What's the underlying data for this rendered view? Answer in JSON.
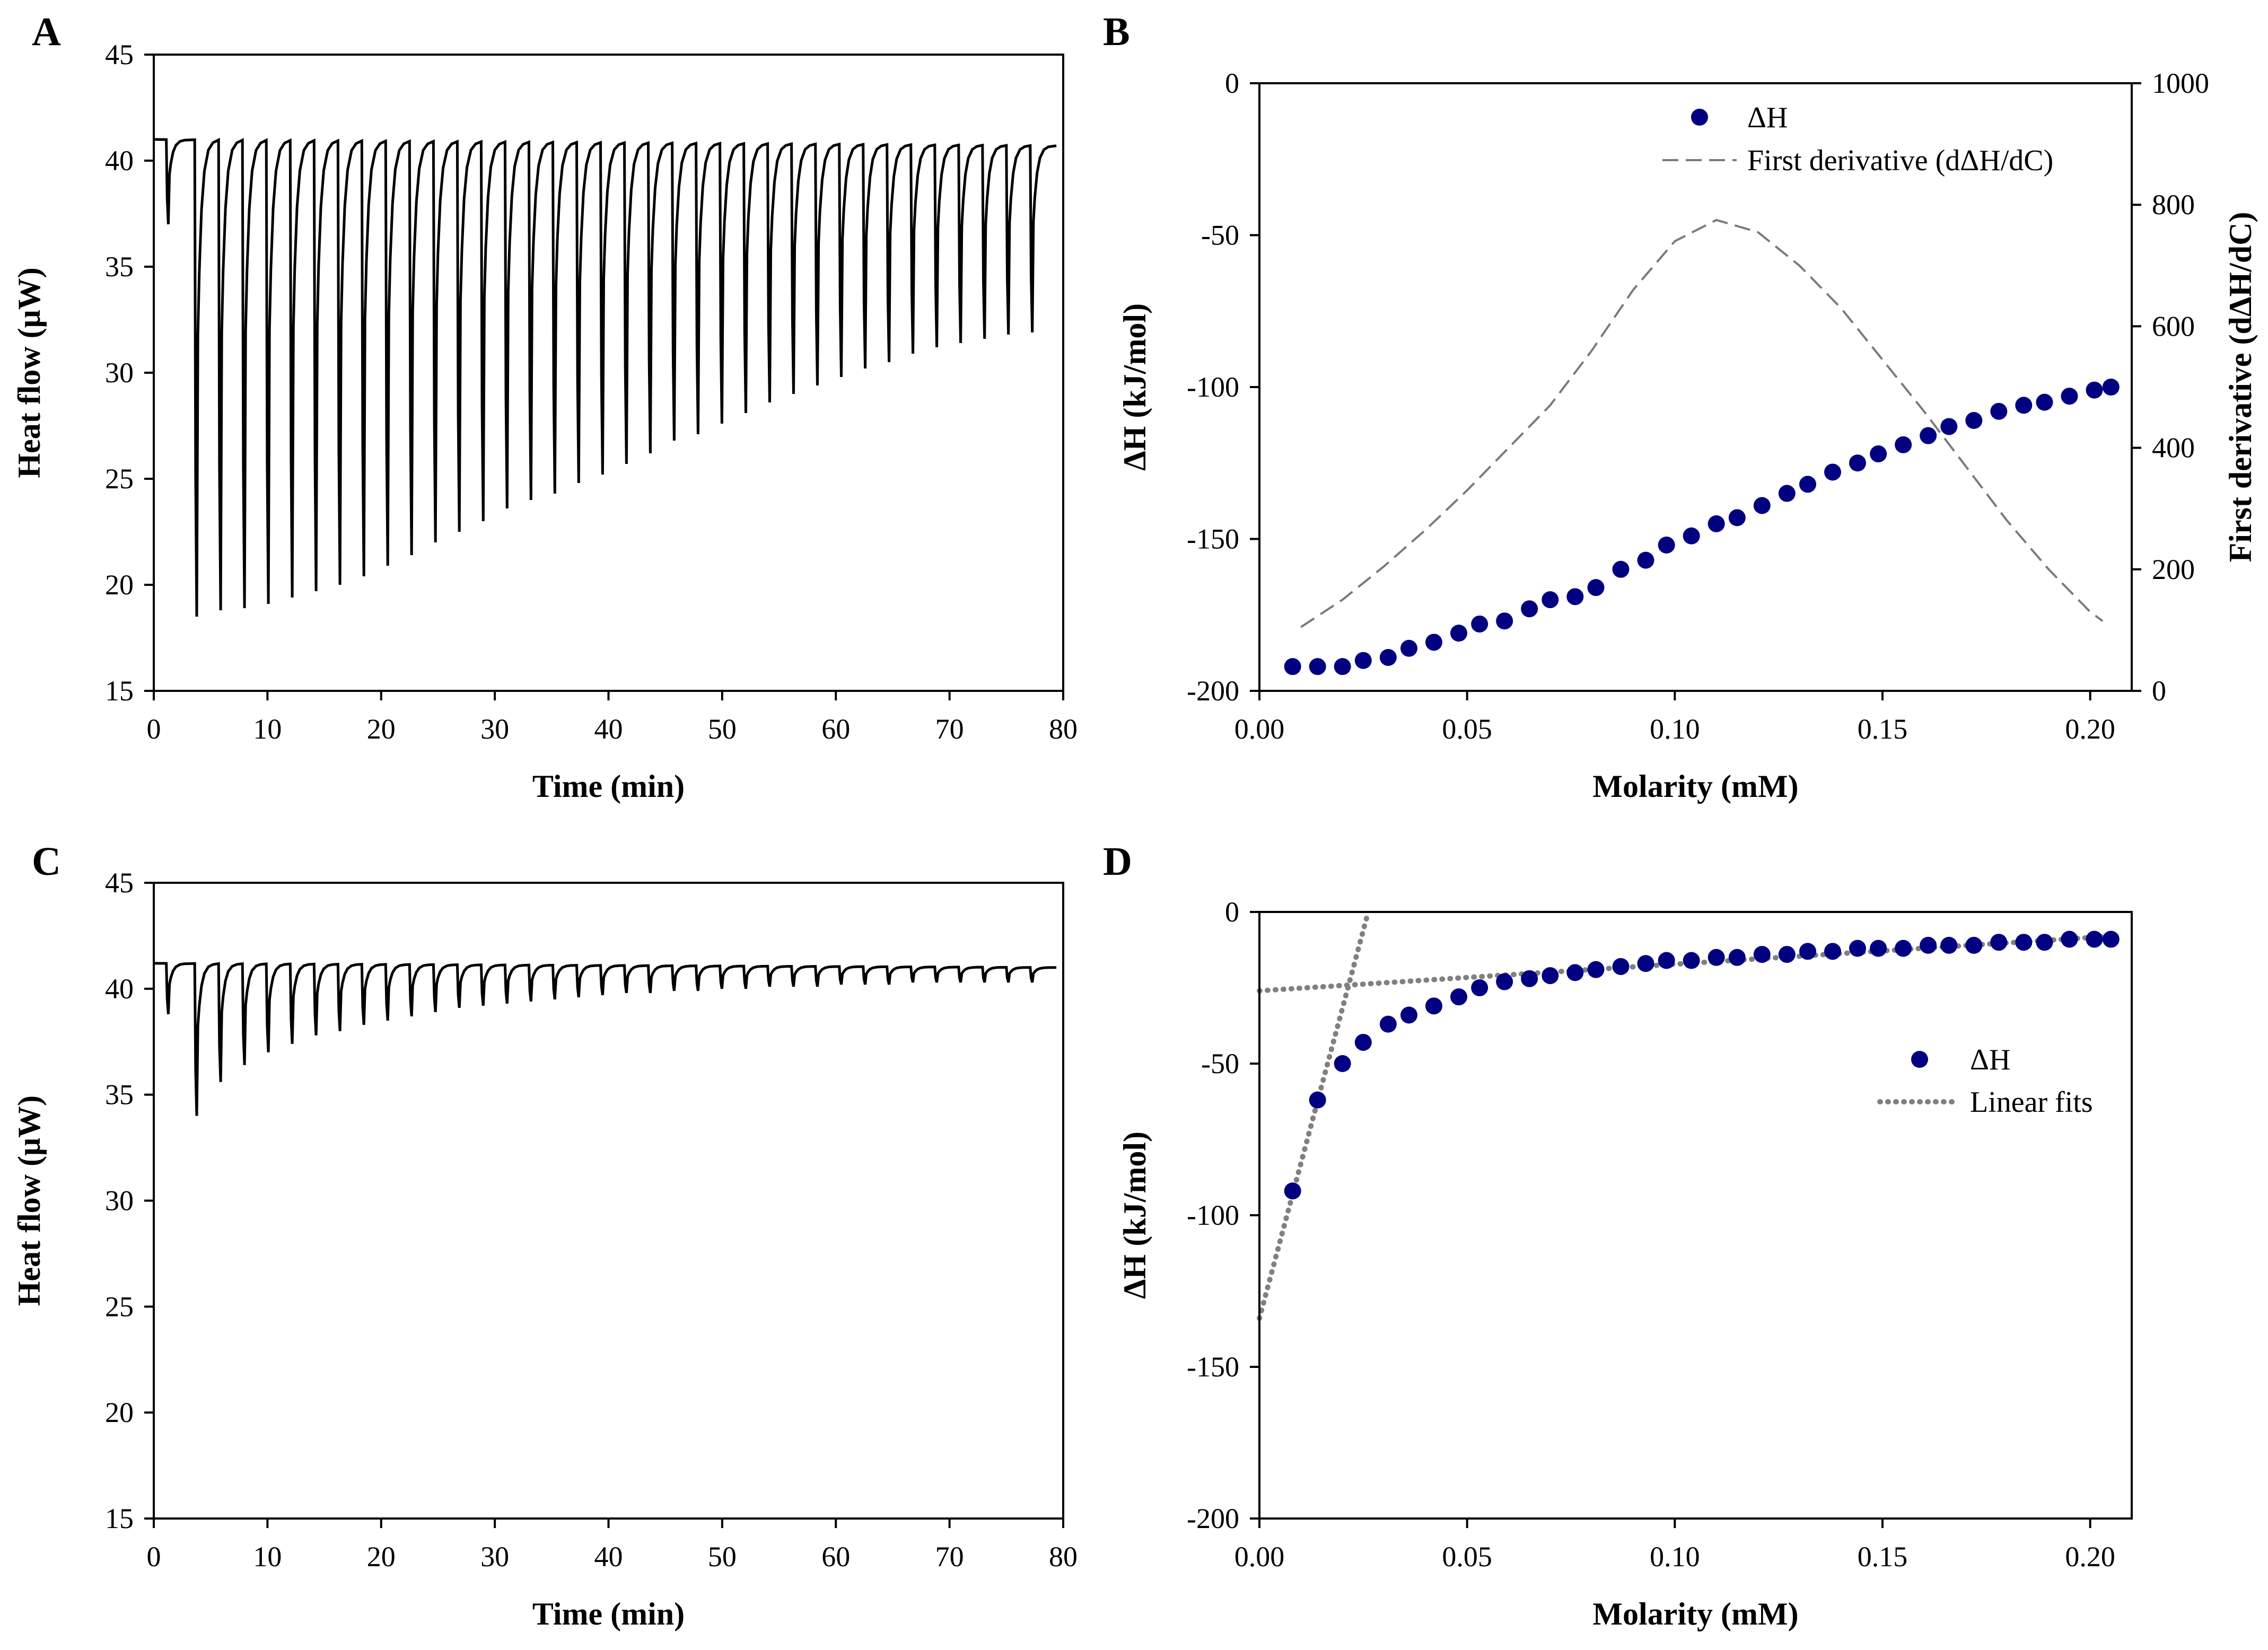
{
  "panels": {
    "A": {
      "letter": "A",
      "chart_data": {
        "type": "line",
        "title": "",
        "xlabel": "Time (min)",
        "ylabel": "Heat flow (μW)",
        "xlim": [
          0,
          80
        ],
        "ylim": [
          15,
          45
        ],
        "xticks": [
          "0",
          "10",
          "20",
          "30",
          "40",
          "50",
          "60",
          "70",
          "80"
        ],
        "yticks": [
          "15",
          "20",
          "25",
          "30",
          "35",
          "40",
          "45"
        ],
        "series": [
          {
            "name": "Heat flow",
            "baseline_start": 41.0,
            "baseline_end": 40.7,
            "injection_interval_min": 2.1,
            "injection_times": [
              1.1,
              3.6,
              5.7,
              7.8,
              9.9,
              12.0,
              14.1,
              16.2,
              18.3,
              20.4,
              22.5,
              24.6,
              26.7,
              28.8,
              30.9,
              33.0,
              35.1,
              37.2,
              39.3,
              41.4,
              43.5,
              45.6,
              47.7,
              49.8,
              51.9,
              54.0,
              56.1,
              58.2,
              60.3,
              62.4,
              64.5,
              66.6,
              68.7,
              70.8,
              72.9,
              75.0,
              77.1
            ],
            "peak_minima": [
              37.0,
              18.5,
              18.8,
              18.9,
              19.1,
              19.4,
              19.7,
              20.0,
              20.4,
              20.9,
              21.4,
              22.0,
              22.5,
              23.0,
              23.6,
              24.0,
              24.3,
              24.8,
              25.2,
              25.7,
              26.2,
              26.8,
              27.1,
              27.6,
              28.1,
              28.6,
              29.0,
              29.4,
              29.8,
              30.2,
              30.5,
              30.9,
              31.2,
              31.4,
              31.6,
              31.8,
              31.9
            ]
          }
        ]
      }
    },
    "B": {
      "letter": "B",
      "chart_data": {
        "type": "scatter",
        "title": "",
        "xlabel": "Molarity (mM)",
        "ylabel": "ΔH (kJ/mol)",
        "y2label": "First derivative (dΔH/dC)",
        "xlim": [
          0,
          0.21
        ],
        "ylim": [
          -200,
          0
        ],
        "y2lim": [
          0,
          1000
        ],
        "xticks": [
          "0.00",
          "0.05",
          "0.10",
          "0.15",
          "0.20"
        ],
        "yticks": [
          "-200",
          "-150",
          "-100",
          "-50",
          "0"
        ],
        "y2ticks": [
          "0",
          "200",
          "400",
          "600",
          "800",
          "1000"
        ],
        "legend_position": "top-right",
        "series": [
          {
            "name": "ΔH",
            "color": "#000080",
            "x": [
              0.008,
              0.014,
              0.02,
              0.025,
              0.031,
              0.036,
              0.042,
              0.048,
              0.053,
              0.059,
              0.065,
              0.07,
              0.076,
              0.081,
              0.087,
              0.093,
              0.098,
              0.104,
              0.11,
              0.115,
              0.121,
              0.127,
              0.132,
              0.138,
              0.144,
              0.149,
              0.155,
              0.161,
              0.166,
              0.172,
              0.178,
              0.184,
              0.189,
              0.195,
              0.201,
              0.205
            ],
            "y": [
              -192,
              -192,
              -192,
              -190,
              -189,
              -186,
              -184,
              -181,
              -178,
              -177,
              -173,
              -170,
              -169,
              -166,
              -160,
              -157,
              -152,
              -149,
              -145,
              -143,
              -139,
              -135,
              -132,
              -128,
              -125,
              -122,
              -119,
              -116,
              -113,
              -111,
              -108,
              -106,
              -105,
              -103,
              -101,
              -100
            ]
          },
          {
            "name": "First derivative (dΔH/dC)",
            "axis": "right",
            "style": "dashed",
            "color": "#7a7a7a",
            "x": [
              0.01,
              0.02,
              0.03,
              0.04,
              0.05,
              0.06,
              0.07,
              0.08,
              0.09,
              0.1,
              0.11,
              0.12,
              0.13,
              0.14,
              0.15,
              0.16,
              0.17,
              0.18,
              0.19,
              0.2,
              0.203
            ],
            "y": [
              105,
              150,
              205,
              265,
              330,
              400,
              470,
              560,
              660,
              740,
              775,
              755,
              700,
              630,
              545,
              460,
              370,
              280,
              200,
              130,
              115
            ]
          }
        ]
      }
    },
    "C": {
      "letter": "C",
      "chart_data": {
        "type": "line",
        "title": "",
        "xlabel": "Time (min)",
        "ylabel": "Heat flow (μW)",
        "xlim": [
          0,
          80
        ],
        "ylim": [
          15,
          45
        ],
        "xticks": [
          "0",
          "10",
          "20",
          "30",
          "40",
          "50",
          "60",
          "70",
          "80"
        ],
        "yticks": [
          "15",
          "20",
          "25",
          "30",
          "35",
          "40",
          "45"
        ],
        "series": [
          {
            "name": "Heat flow",
            "baseline_start": 41.2,
            "baseline_end": 41.0,
            "injection_interval_min": 2.1,
            "injection_times": [
              1.1,
              3.6,
              5.7,
              7.8,
              9.9,
              12.0,
              14.1,
              16.2,
              18.3,
              20.4,
              22.5,
              24.6,
              26.7,
              28.8,
              30.9,
              33.0,
              35.1,
              37.2,
              39.3,
              41.4,
              43.5,
              45.6,
              47.7,
              49.8,
              51.9,
              54.0,
              56.1,
              58.2,
              60.3,
              62.4,
              64.5,
              66.6,
              68.7,
              70.8,
              72.9,
              75.0,
              77.1
            ],
            "peak_minima": [
              38.8,
              34.0,
              35.6,
              36.4,
              37.0,
              37.4,
              37.8,
              38.0,
              38.3,
              38.5,
              38.7,
              38.9,
              39.1,
              39.2,
              39.3,
              39.4,
              39.5,
              39.6,
              39.7,
              39.8,
              39.8,
              39.9,
              39.9,
              40.0,
              40.0,
              40.1,
              40.1,
              40.1,
              40.2,
              40.2,
              40.2,
              40.3,
              40.3,
              40.3,
              40.3,
              40.3,
              40.3
            ]
          }
        ]
      }
    },
    "D": {
      "letter": "D",
      "chart_data": {
        "type": "scatter",
        "title": "",
        "xlabel": "Molarity (mM)",
        "ylabel": "ΔH (kJ/mol)",
        "xlim": [
          0,
          0.21
        ],
        "ylim": [
          -200,
          0
        ],
        "xticks": [
          "0.00",
          "0.05",
          "0.10",
          "0.15",
          "0.20"
        ],
        "yticks": [
          "-200",
          "-150",
          "-100",
          "-50",
          "0"
        ],
        "legend_position": "right",
        "series": [
          {
            "name": "ΔH",
            "color": "#000080",
            "x": [
              0.008,
              0.014,
              0.02,
              0.025,
              0.031,
              0.036,
              0.042,
              0.048,
              0.053,
              0.059,
              0.065,
              0.07,
              0.076,
              0.081,
              0.087,
              0.093,
              0.098,
              0.104,
              0.11,
              0.115,
              0.121,
              0.127,
              0.132,
              0.138,
              0.144,
              0.149,
              0.155,
              0.161,
              0.166,
              0.172,
              0.178,
              0.184,
              0.189,
              0.195,
              0.201,
              0.205
            ],
            "y": [
              -92,
              -62,
              -50,
              -43,
              -37,
              -34,
              -31,
              -28,
              -25,
              -23,
              -22,
              -21,
              -20,
              -19,
              -18,
              -17,
              -16,
              -16,
              -15,
              -15,
              -14,
              -14,
              -13,
              -13,
              -12,
              -12,
              -12,
              -11,
              -11,
              -11,
              -10,
              -10,
              -10,
              -9,
              -9,
              -9
            ]
          },
          {
            "name": "Linear fits",
            "style": "dotted",
            "color": "#808080",
            "lines": [
              {
                "x": [
                  0.0,
                  0.026
                ],
                "y": [
                  -134,
                  -1
                ]
              },
              {
                "x": [
                  0.0,
                  0.205
                ],
                "y": [
                  -26,
                  -8
                ]
              }
            ]
          }
        ]
      }
    }
  }
}
